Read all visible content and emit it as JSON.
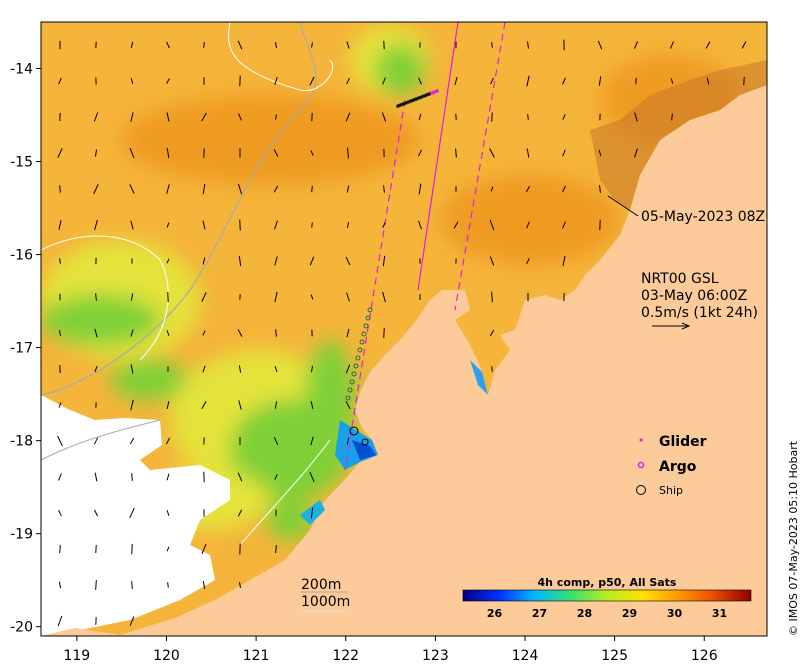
{
  "map": {
    "x_ticks": [
      "119",
      "120",
      "121",
      "122",
      "123",
      "124",
      "125",
      "126"
    ],
    "y_ticks": [
      "-14",
      "-15",
      "-16",
      "-17",
      "-18",
      "-19",
      "-20"
    ],
    "lon_range": [
      118.6,
      126.7
    ],
    "lat_range": [
      -20.1,
      -13.5
    ],
    "colors": {
      "land": "#fdcb9a",
      "no_data": "#ffffff",
      "ocean_main": "#f5b43a",
      "ocean_warm": "#ef9b23",
      "ocean_green": "#7fd038",
      "ocean_yellow": "#e4e33b",
      "track_magenta": "#e01ee0"
    }
  },
  "annotations": {
    "glider_time": "05-May-2023 08Z",
    "current_source": "NRT00 GSL",
    "current_time": "03-May 06:00Z",
    "current_scale": "0.5m/s (1kt 24h)",
    "isobath_200": "200m",
    "isobath_1000": "1000m"
  },
  "legend": {
    "glider": "Glider",
    "argo": "Argo",
    "ship": "Ship"
  },
  "colorbar": {
    "title": "4h comp, p50, All Sats",
    "ticks": [
      "26",
      "27",
      "28",
      "29",
      "30",
      "31"
    ],
    "range": [
      25.3,
      31.7
    ],
    "stops": [
      "#00007f",
      "#0030ff",
      "#00b8ff",
      "#38e070",
      "#b8ee20",
      "#ffe000",
      "#ff9800",
      "#e84800",
      "#900000"
    ]
  },
  "credit": "© IMOS 07-May-2023 05:10 Hobart"
}
